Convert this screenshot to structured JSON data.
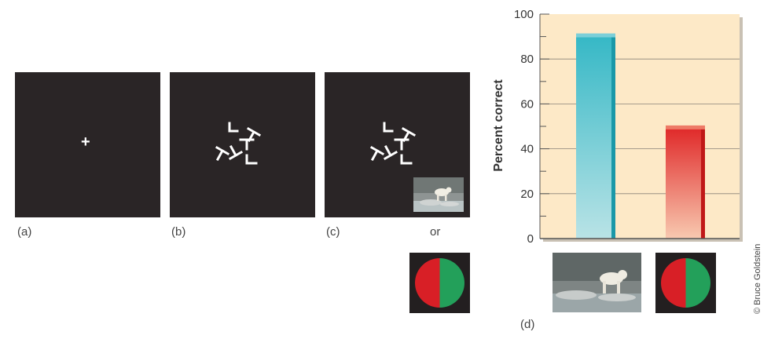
{
  "panels": {
    "a_label": "(a)",
    "b_label": "(b)",
    "c_label": "(c)",
    "or_label": "or",
    "d_label": "(d)",
    "fixation": "+"
  },
  "credit": "© Bruce Goldstein",
  "colors": {
    "panel_bg": "#2a2526",
    "chart_bg": "#fde9c7",
    "bar_scene": "#36b8c6",
    "bar_color": "#e02a2a",
    "circle_red": "#d81f26",
    "circle_green": "#23a05a"
  },
  "chart_data": {
    "type": "bar",
    "categories": [
      "scene image",
      "red-green disk"
    ],
    "values": [
      90,
      49
    ],
    "title": "",
    "xlabel": "",
    "ylabel": "Percent correct",
    "ylim": [
      0,
      100
    ],
    "yticks": [
      "0",
      "20",
      "40",
      "60",
      "80",
      "100"
    ],
    "grid": true
  }
}
